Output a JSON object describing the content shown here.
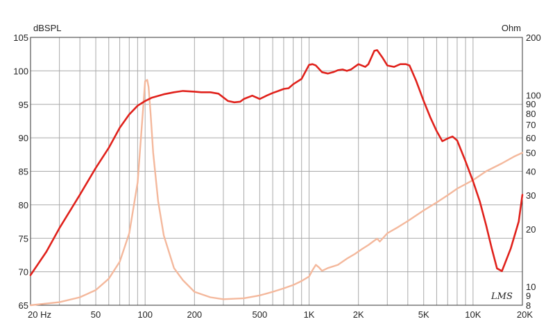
{
  "chart_data": {
    "type": "line",
    "y_unit_left": "dBSPL",
    "y_unit_right": "Ohm",
    "x_scale": "log",
    "xlim": [
      20,
      20000
    ],
    "ylim_left": [
      65,
      105
    ],
    "ylim_right": [
      8,
      200
    ],
    "y_scale_right": "log",
    "grid": true,
    "x_ticks": [
      {
        "value": 20,
        "label": "20  Hz"
      },
      {
        "value": 50,
        "label": "50"
      },
      {
        "value": 100,
        "label": "100"
      },
      {
        "value": 200,
        "label": "200"
      },
      {
        "value": 500,
        "label": "500"
      },
      {
        "value": 1000,
        "label": "1K"
      },
      {
        "value": 2000,
        "label": "2K"
      },
      {
        "value": 5000,
        "label": "5K"
      },
      {
        "value": 10000,
        "label": "10K"
      },
      {
        "value": 20000,
        "label": "20K"
      }
    ],
    "y_ticks_left": [
      65,
      70,
      75,
      80,
      85,
      90,
      95,
      100,
      105
    ],
    "y_ticks_right": [
      8,
      9,
      10,
      20,
      30,
      40,
      50,
      60,
      70,
      80,
      90,
      100,
      200
    ],
    "watermark": "LMS",
    "series": [
      {
        "color": "#e0211b",
        "axis": "left",
        "x": [
          20,
          25,
          30,
          40,
          50,
          60,
          70,
          80,
          90,
          100,
          110,
          130,
          150,
          170,
          200,
          220,
          250,
          280,
          320,
          350,
          380,
          400,
          450,
          500,
          550,
          600,
          650,
          700,
          750,
          800,
          900,
          1000,
          1050,
          1100,
          1200,
          1300,
          1400,
          1500,
          1600,
          1700,
          1800,
          2000,
          2200,
          2300,
          2500,
          2600,
          2800,
          3000,
          3300,
          3600,
          3900,
          4100,
          4500,
          5000,
          5500,
          6000,
          6500,
          7000,
          7500,
          8000,
          9000,
          10000,
          11000,
          12000,
          13000,
          14000,
          15000,
          17000,
          19000,
          20000
        ],
        "values": [
          69.5,
          73,
          76.5,
          81.5,
          85.5,
          88.5,
          91.5,
          93.5,
          94.8,
          95.5,
          96,
          96.5,
          96.8,
          97,
          96.9,
          96.8,
          96.8,
          96.6,
          95.5,
          95.3,
          95.4,
          95.8,
          96.3,
          95.8,
          96.3,
          96.7,
          97,
          97.3,
          97.4,
          98,
          98.8,
          100.9,
          101,
          100.8,
          99.8,
          99.6,
          99.8,
          100.1,
          100.2,
          100,
          100.2,
          101,
          100.6,
          101,
          103,
          103.1,
          102,
          100.8,
          100.6,
          101,
          101,
          100.8,
          98.5,
          95.5,
          93,
          91,
          89.5,
          89.9,
          90.2,
          89.6,
          86.5,
          83.5,
          80.5,
          77,
          73.5,
          70.5,
          70.1,
          73.5,
          77.5,
          81.5
        ]
      },
      {
        "color": "#f4b89c",
        "axis": "right",
        "x": [
          20,
          30,
          40,
          50,
          60,
          70,
          80,
          90,
          95,
          100,
          103,
          105,
          108,
          112,
          120,
          130,
          150,
          170,
          200,
          250,
          300,
          400,
          500,
          600,
          700,
          800,
          900,
          1000,
          1050,
          1100,
          1150,
          1200,
          1300,
          1500,
          1700,
          1900,
          2100,
          2300,
          2500,
          2600,
          2700,
          3000,
          3500,
          4000,
          5000,
          6000,
          7000,
          8000,
          10000,
          12000,
          15000,
          18000,
          20000
        ],
        "values": [
          8,
          8.3,
          8.8,
          9.6,
          11,
          13.5,
          19,
          35,
          65,
          118,
          120,
          110,
          80,
          50,
          28,
          18.5,
          12.5,
          10.8,
          9.4,
          8.8,
          8.6,
          8.7,
          9,
          9.4,
          9.8,
          10.2,
          10.7,
          11.3,
          12.2,
          13,
          12.6,
          12.1,
          12.5,
          13,
          14,
          14.8,
          15.7,
          16.5,
          17.4,
          17.8,
          17.2,
          19,
          20.5,
          22,
          25,
          27.5,
          30,
          32.5,
          36,
          40,
          44,
          48,
          50
        ]
      }
    ]
  }
}
